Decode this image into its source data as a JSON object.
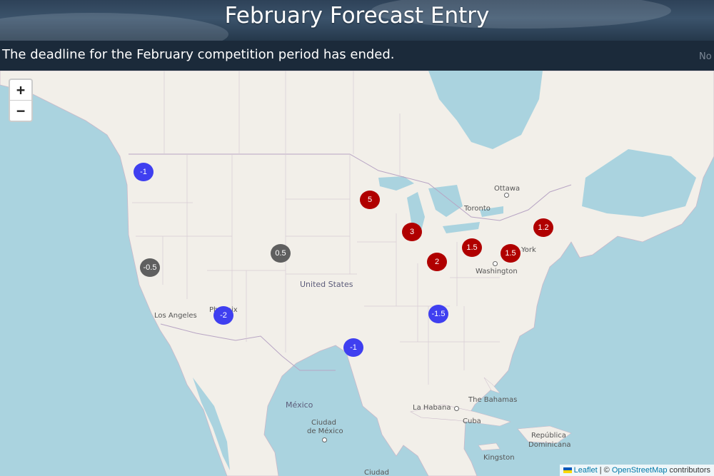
{
  "header": {
    "title": "February Forecast Entry"
  },
  "status": {
    "message": "The deadline for the February competition period has ended.",
    "right_text": "No"
  },
  "map": {
    "zoom_in": "+",
    "zoom_out": "−",
    "labels": {
      "ottawa": "Ottawa",
      "toronto": "Toronto",
      "york": "York",
      "washington": "Washington",
      "united_states": "United States",
      "los_angeles": "Los Angeles",
      "phoenix": "Phoenix",
      "mexico": "México",
      "ciudad_de": "Ciudad",
      "de_mexico": "de México",
      "la_habana": "La Habana",
      "cuba": "Cuba",
      "bahamas": "The Bahamas",
      "republica": "República",
      "dominicana": "Dominicana",
      "kingston": "Kingston",
      "guatemala": "Ciudad"
    },
    "markers": [
      {
        "value": "-1",
        "category": "below",
        "color": "#3f3ff0"
      },
      {
        "value": "5",
        "category": "above",
        "color": "#b00000"
      },
      {
        "value": "3",
        "category": "above",
        "color": "#b00000"
      },
      {
        "value": "1.2",
        "category": "above",
        "color": "#b00000"
      },
      {
        "value": "1.5",
        "category": "above",
        "color": "#b00000"
      },
      {
        "value": "1.5",
        "category": "above",
        "color": "#b00000"
      },
      {
        "value": "2",
        "category": "above",
        "color": "#b00000"
      },
      {
        "value": "0.5",
        "category": "neutral",
        "color": "#5f5f5f"
      },
      {
        "value": "-0.5",
        "category": "neutral",
        "color": "#5f5f5f"
      },
      {
        "value": "-2",
        "category": "below",
        "color": "#3f3ff0"
      },
      {
        "value": "-1.5",
        "category": "below",
        "color": "#3f3ff0"
      },
      {
        "value": "-1",
        "category": "below",
        "color": "#3f3ff0"
      }
    ],
    "attribution": {
      "leaflet": "Leaflet",
      "separator": " | © ",
      "osm": "OpenStreetMap",
      "suffix": " contributors"
    }
  },
  "colors": {
    "water": "#aad3df",
    "land": "#f2efe9",
    "warm": "#b00000",
    "cold": "#3f3ff0",
    "neutral": "#5f5f5f"
  }
}
